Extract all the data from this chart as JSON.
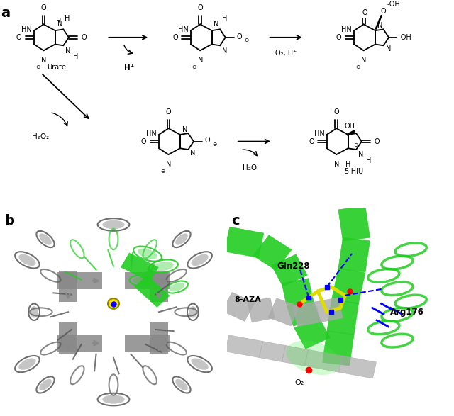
{
  "panel_a_label": "a",
  "panel_b_label": "b",
  "panel_c_label": "c",
  "background_color": "#ffffff",
  "text_color": "#000000",
  "label_fontsize": 14,
  "label_fontweight": "bold",
  "figure_width": 6.4,
  "figure_height": 5.87,
  "annotation_fontsize": 8,
  "molecule_fontsize": 7.5,
  "arrow_color": "#000000",
  "urate_label": "Urate",
  "hplus_label": "H⁺",
  "o2_hplus_label": "O₂, H⁺",
  "h2o2_label": "H₂O₂",
  "h2o_label": "H₂O",
  "fivehiu_label": "5-HIU",
  "gln228_label": "Gln228",
  "arg176_label": "Arg176",
  "aza_label": "8-AZA",
  "o2_label": "O₂",
  "protein_bg_b": "#d0d0d0",
  "protein_green": "#22cc22",
  "protein_gray": "#888888",
  "yellow_color": "#ffdd00",
  "blue_color": "#0000cc",
  "red_color": "#cc0000"
}
